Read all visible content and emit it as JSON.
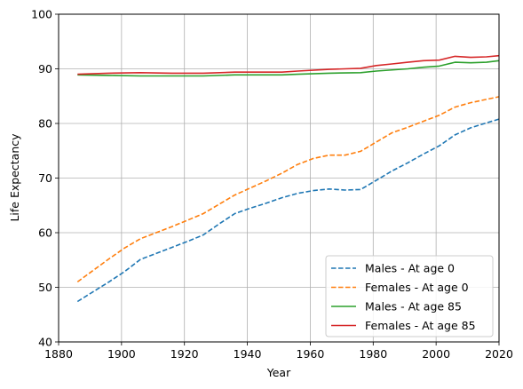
{
  "chart_data": {
    "type": "line",
    "xlabel": "Year",
    "ylabel": "Life Expectancy",
    "xlim": [
      1880,
      2020
    ],
    "ylim": [
      40,
      100
    ],
    "xticks": [
      1880,
      1900,
      1920,
      1940,
      1960,
      1980,
      2000,
      2020
    ],
    "yticks": [
      40,
      50,
      60,
      70,
      80,
      90,
      100
    ],
    "grid": true,
    "legend_position": "bottom-right",
    "series": [
      {
        "name": "Males - At age 0",
        "color": "#1f77b4",
        "dash": true,
        "x": [
          1886,
          1891,
          1896,
          1901,
          1906,
          1911,
          1916,
          1921,
          1926,
          1931,
          1936,
          1941,
          1946,
          1951,
          1956,
          1961,
          1966,
          1971,
          1976,
          1981,
          1986,
          1991,
          1996,
          2001,
          2006,
          2011,
          2016,
          2020
        ],
        "values": [
          47.4,
          49.2,
          51.0,
          52.9,
          55.1,
          56.2,
          57.3,
          58.4,
          59.6,
          61.6,
          63.5,
          64.5,
          65.4,
          66.4,
          67.2,
          67.7,
          68.0,
          67.8,
          67.9,
          69.6,
          71.3,
          72.8,
          74.4,
          75.9,
          77.9,
          79.2,
          80.1,
          80.8
        ]
      },
      {
        "name": "Females - At age 0",
        "color": "#ff7f0e",
        "dash": true,
        "x": [
          1886,
          1891,
          1896,
          1901,
          1906,
          1911,
          1916,
          1921,
          1926,
          1931,
          1936,
          1941,
          1946,
          1951,
          1956,
          1961,
          1966,
          1971,
          1976,
          1981,
          1986,
          1991,
          1996,
          2001,
          2006,
          2011,
          2016,
          2020
        ],
        "values": [
          51.0,
          53.1,
          55.2,
          57.2,
          58.9,
          60.0,
          61.1,
          62.3,
          63.5,
          65.2,
          66.9,
          68.2,
          69.5,
          70.9,
          72.5,
          73.6,
          74.2,
          74.2,
          74.9,
          76.6,
          78.3,
          79.3,
          80.4,
          81.5,
          83.0,
          83.8,
          84.4,
          84.9
        ]
      },
      {
        "name": "Males - At age 85",
        "color": "#2ca02c",
        "dash": false,
        "x": [
          1886,
          1896,
          1906,
          1916,
          1926,
          1936,
          1946,
          1951,
          1956,
          1966,
          1976,
          1981,
          1991,
          1996,
          2001,
          2006,
          2011,
          2016,
          2020
        ],
        "values": [
          88.9,
          88.8,
          88.7,
          88.7,
          88.7,
          88.9,
          88.9,
          88.9,
          89.0,
          89.2,
          89.3,
          89.6,
          90.0,
          90.3,
          90.5,
          91.2,
          91.1,
          91.2,
          91.5
        ]
      },
      {
        "name": "Females - At age 85",
        "color": "#d62728",
        "dash": false,
        "x": [
          1886,
          1896,
          1906,
          1916,
          1926,
          1936,
          1946,
          1951,
          1956,
          1966,
          1971,
          1976,
          1981,
          1986,
          1991,
          1996,
          2001,
          2006,
          2011,
          2016,
          2020
        ],
        "values": [
          89.0,
          89.2,
          89.3,
          89.2,
          89.2,
          89.4,
          89.4,
          89.4,
          89.6,
          89.9,
          90.0,
          90.1,
          90.6,
          90.9,
          91.2,
          91.5,
          91.6,
          92.3,
          92.1,
          92.2,
          92.4
        ]
      }
    ]
  }
}
